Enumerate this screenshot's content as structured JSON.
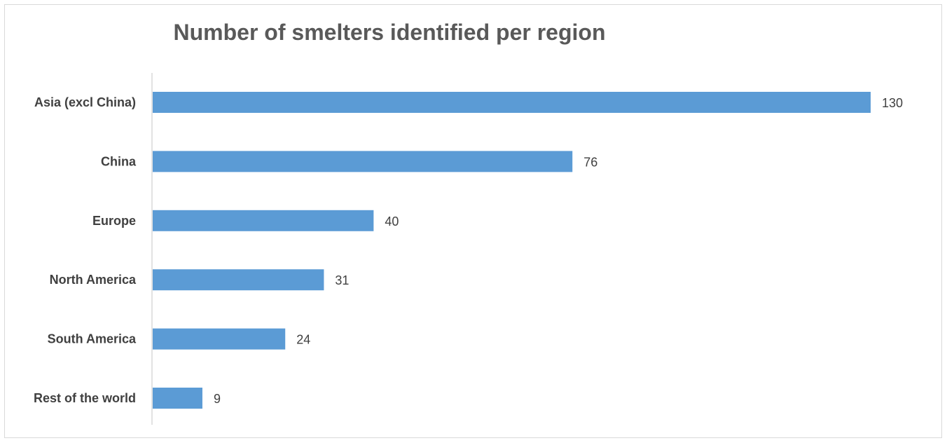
{
  "chart_data": {
    "type": "bar",
    "orientation": "horizontal",
    "title": "Number of smelters identified per region",
    "xlabel": "",
    "ylabel": "",
    "categories": [
      "Asia (excl China)",
      "China",
      "Europe",
      "North America",
      "South America",
      "Rest of the world"
    ],
    "values": [
      130,
      76,
      40,
      31,
      24,
      9
    ],
    "data_labels": [
      "130",
      "76",
      "40",
      "31",
      "24",
      "9"
    ],
    "xlim": [
      0,
      130
    ],
    "grid": false,
    "legend": "none",
    "bar_color": "#5b9bd5"
  }
}
